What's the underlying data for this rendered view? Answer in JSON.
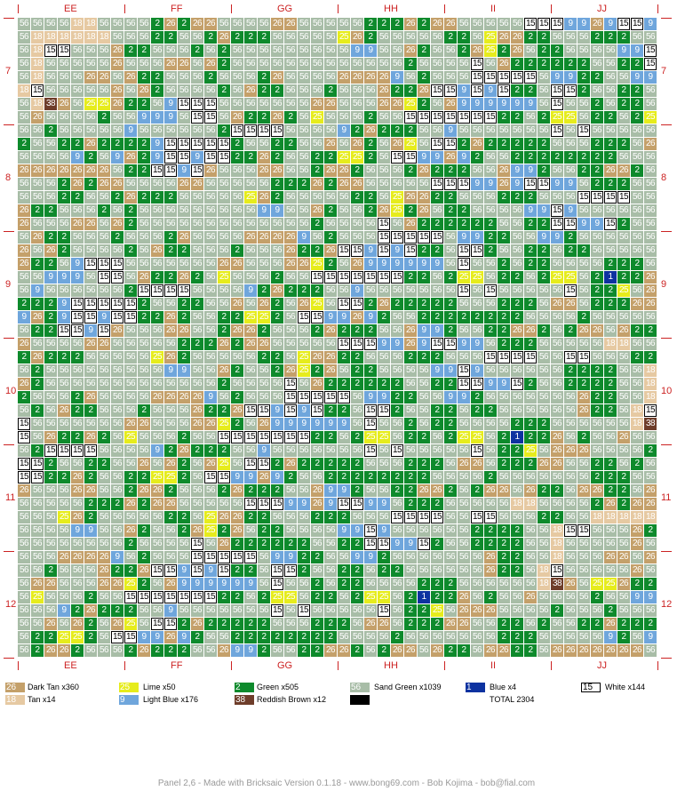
{
  "columns": [
    "EE",
    "FF",
    "GG",
    "HH",
    "II",
    "JJ"
  ],
  "rows": [
    "7",
    "8",
    "9",
    "10",
    "11",
    "12"
  ],
  "colors": {
    "26": {
      "name": "Dark Tan",
      "hex": "#c4a06a",
      "text": "#ffffff"
    },
    "18": {
      "name": "Tan",
      "hex": "#e6c9a2",
      "text": "#ffffff"
    },
    "25": {
      "name": "Lime",
      "hex": "#e6ec1c",
      "text": "#ffffff"
    },
    "9": {
      "name": "Light Blue",
      "hex": "#6fa6dc",
      "text": "#ffffff"
    },
    "2": {
      "name": "Green",
      "hex": "#0e8a2c",
      "text": "#ffffff"
    },
    "38": {
      "name": "Reddish Brown",
      "hex": "#6e3d2a",
      "text": "#ffffff"
    },
    "56": {
      "name": "Sand Green",
      "hex": "#a8bda7",
      "text": "#ffffff"
    },
    "1": {
      "name": "Blue",
      "hex": "#0d32a0",
      "text": "#ffffff"
    },
    "15": {
      "name": "White",
      "hex": "#ffffff",
      "text": "#000000"
    }
  },
  "legend": [
    {
      "code": "26",
      "label": "Dark Tan",
      "count": "x360"
    },
    {
      "code": "18",
      "label": "Tan",
      "count": "x14"
    },
    {
      "code": "25",
      "label": "Lime",
      "count": "x50"
    },
    {
      "code": "9",
      "label": "Light Blue",
      "count": "x176"
    },
    {
      "code": "2",
      "label": "Green",
      "count": "x505"
    },
    {
      "code": "38",
      "label": "Reddish Brown",
      "count": "x12"
    },
    {
      "code": "56",
      "label": "Sand Green",
      "count": "x1039"
    },
    {
      "code": "",
      "label": "",
      "count": ""
    },
    {
      "code": "1",
      "label": "Blue",
      "count": "x4"
    },
    {
      "code": "",
      "label": "TOTAL",
      "count": "2304"
    },
    {
      "code": "15",
      "label": "White",
      "count": "x144"
    }
  ],
  "footer": "Panel 2,6 - Made with Bricksaic Version 0.1.18 - www.bong69.com - Bob Kojima - bob@fial.com",
  "mosaic_rows": [
    "565656561818565656562 26 2 26 2656565656262656565656562 2 2 262 26 2656565656561515159 9 269 15159 9 562 2 2 56",
    "561818181818185656562 2 56562 262 2 2 565656565625262 56565656562 2 562526262 2 5656562 2 2 56565615151515565615155656562 2 56",
    "56181515565656262 2 5656562 562 5656565656565656569 9 5656262 56562 262562 26562 2 565656569 9 159 5656565656562 2 2 2 56",
    "5618565656565626565656262656262 565656565656565656565656562 565656561556262 2 2 2 2 2 56562 2 15159 9 152 56562 2 2 2 56",
    "5618565656262656262 2 5656562 5656562 2656565656262626269 562 5656561515151515569 9 2 2 56569 9 2 56565656565656262 2 56",
    "181556565656562656262 565656562 56262 2 5656562 565656262 2 2615159 159 152 2 5615152 56562 2 562 2 565656565656262 2 56",
    "56183826562525262 2 569 1515155656565656565626265656562626252 56269 9 9 9 9 9 561556562 562 2 565656562 2 2 5656565656",
    "5626565656562 56569 9 9 56151556262 2 262 56255656562 5656151515151515152 2 562 25625562 2 562 25625562 1 2 2 26562 56",
    "56562 56565656569 5656565656562 15151515565656569 2 262 2 2 56569 56565656565656155615565656565615562 2 2556262626565656562 56",
    "2 56562 2 262 2 2 2 9 15151515152 56562 2 56562656262 56262565615152 262 2 2 2 2 5656562 2 2 562626562 2 2 262656562 2 56",
    "565656569 2 569 262 9 15159 15152 2 262 56562 2 25252 5615159 9 269 2 56562 2 2 2 2 2 2 2 565656562 565656565656562 2 2 56",
    "26262626262626562 2 15159 1526565656262656562 26262 5656562 262 2 2 5656269 9 2 56562 2 26262 562 262656262 2 5626262 2 56"
  ]
}
